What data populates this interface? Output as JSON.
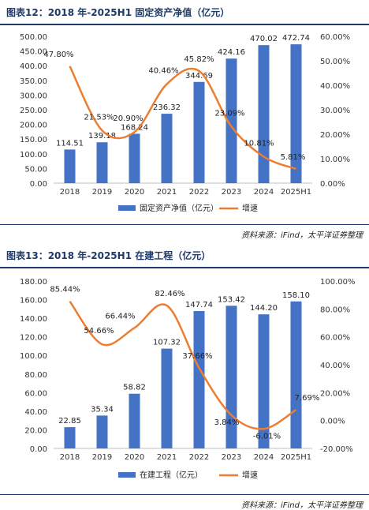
{
  "charts": [
    {
      "title": "图表12：2018 年-2025H1 固定资产净值（亿元）",
      "source": "资料来源：iFind，太平洋证券整理",
      "chart_data": {
        "type": "bar",
        "categories": [
          "2018",
          "2019",
          "2020",
          "2021",
          "2022",
          "2023",
          "2024",
          "2025H1"
        ],
        "series": [
          {
            "name": "固定资产净值（亿元）",
            "type": "bar",
            "axis": "left",
            "values": [
              114.51,
              139.18,
              168.24,
              236.32,
              344.69,
              424.16,
              470.02,
              472.74
            ],
            "labels": [
              "114.51",
              "139.18",
              "168.24",
              "236.32",
              "344.69",
              "424.16",
              "470.02",
              "472.74"
            ]
          },
          {
            "name": "增速",
            "type": "line",
            "axis": "right",
            "values": [
              47.8,
              21.53,
              20.9,
              40.46,
              45.82,
              23.09,
              10.81,
              5.81
            ],
            "labels": [
              "47.80%",
              "21.53%",
              "20.90%",
              "40.46%",
              "45.82%",
              "23.09%",
              "10.81%",
              "5.81%"
            ]
          }
        ],
        "y_left": {
          "min": 0,
          "max": 500,
          "step": 50,
          "ticks": [
            "0.00",
            "50.00",
            "100.00",
            "150.00",
            "200.00",
            "250.00",
            "300.00",
            "350.00",
            "400.00",
            "450.00",
            "500.00"
          ]
        },
        "y_right": {
          "min": 0,
          "max": 60,
          "step": 10,
          "ticks": [
            "0.00%",
            "10.00%",
            "20.00%",
            "30.00%",
            "40.00%",
            "50.00%",
            "60.00%"
          ]
        },
        "legend": "bottom",
        "colors": {
          "bar": "#4472c4",
          "line": "#ed7d31"
        }
      }
    },
    {
      "title": "图表13：2018 年-2025H1 在建工程（亿元）",
      "source": "资料来源：iFind，太平洋证券整理",
      "chart_data": {
        "type": "bar",
        "categories": [
          "2018",
          "2019",
          "2020",
          "2021",
          "2022",
          "2023",
          "2024",
          "2025H1"
        ],
        "series": [
          {
            "name": "在建工程（亿元）",
            "type": "bar",
            "axis": "left",
            "values": [
              22.85,
              35.34,
              58.82,
              107.32,
              147.74,
              153.42,
              144.2,
              158.1
            ],
            "labels": [
              "22.85",
              "35.34",
              "58.82",
              "107.32",
              "147.74",
              "153.42",
              "144.20",
              "158.10"
            ]
          },
          {
            "name": "增速",
            "type": "line",
            "axis": "right",
            "values": [
              85.44,
              54.66,
              66.44,
              82.46,
              37.66,
              3.84,
              -6.01,
              7.69
            ],
            "labels": [
              "85.44%",
              "54.66%",
              "66.44%",
              "82.46%",
              "37.66%",
              "3.84%",
              "-6.01%",
              "7.69%"
            ]
          }
        ],
        "y_left": {
          "min": 0,
          "max": 180,
          "step": 20,
          "ticks": [
            "0.00",
            "20.00",
            "40.00",
            "60.00",
            "80.00",
            "100.00",
            "120.00",
            "140.00",
            "160.00",
            "180.00"
          ]
        },
        "y_right": {
          "min": -20,
          "max": 100,
          "step": 20,
          "ticks": [
            "-20.00%",
            "0.00%",
            "20.00%",
            "40.00%",
            "60.00%",
            "80.00%",
            "100.00%"
          ]
        },
        "legend": "bottom",
        "colors": {
          "bar": "#4472c4",
          "line": "#ed7d31"
        }
      }
    }
  ]
}
